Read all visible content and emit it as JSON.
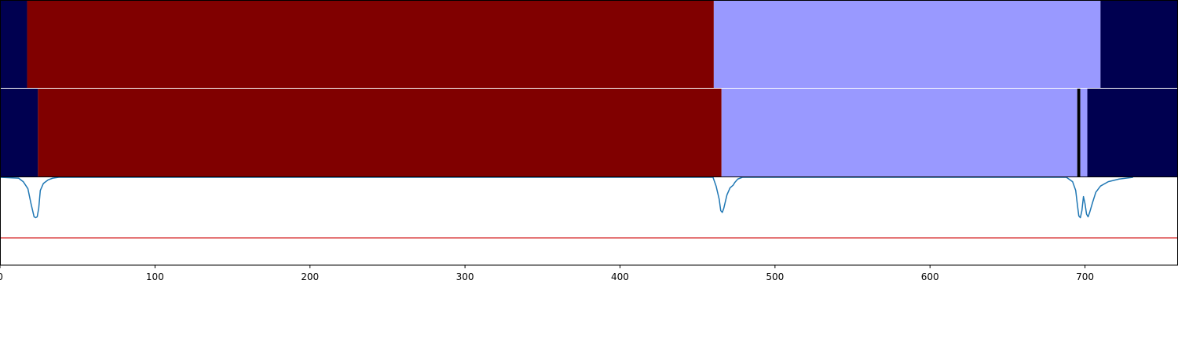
{
  "chart_data": {
    "type": "heatmap",
    "title": "",
    "xlabel": "",
    "ylabel": "",
    "xlim": [
      0,
      760
    ],
    "x_ticks": [
      0,
      100,
      200,
      300,
      400,
      500,
      600,
      700
    ],
    "x_tick_labels": [
      "0",
      "100",
      "200",
      "300",
      "400",
      "500",
      "600",
      "700"
    ],
    "grid": false,
    "colors": {
      "dark_navy": "#000050",
      "dark_red": "#800000",
      "light_purple": "#9999ff",
      "black": "#000000",
      "curve": "#1f77b4",
      "threshold": "#d62728"
    },
    "segment_rows": [
      {
        "name": "",
        "segments": [
          {
            "start": 0,
            "end": 17.5,
            "color": "dark_navy"
          },
          {
            "start": 17.5,
            "end": 460.5,
            "color": "dark_red"
          },
          {
            "start": 460.5,
            "end": 710,
            "color": "light_purple"
          },
          {
            "start": 710,
            "end": 760,
            "color": "dark_navy"
          }
        ]
      },
      {
        "name": "",
        "segments": [
          {
            "start": 0,
            "end": 24.5,
            "color": "dark_navy"
          },
          {
            "start": 24.5,
            "end": 465.5,
            "color": "dark_red"
          },
          {
            "start": 465.5,
            "end": 695,
            "color": "light_purple"
          },
          {
            "start": 695,
            "end": 697,
            "color": "black"
          },
          {
            "start": 697,
            "end": 701.5,
            "color": "light_purple"
          },
          {
            "start": 701.5,
            "end": 760,
            "color": "dark_navy"
          }
        ]
      }
    ],
    "line_panel": {
      "ylim": [
        -1.0,
        0.0
      ],
      "threshold": -0.69,
      "series": [
        {
          "name": "",
          "x": [
            0,
            12,
            15,
            18,
            20,
            22,
            23,
            24,
            25,
            26,
            28,
            31,
            34,
            38,
            42,
            460,
            462,
            464,
            465,
            466,
            467,
            469,
            471,
            473,
            474,
            476,
            479,
            483,
            688,
            692,
            694,
            695,
            696,
            697,
            698,
            699,
            700,
            701,
            702,
            703,
            705,
            707,
            710,
            715,
            722,
            731
          ],
          "y": [
            0.0,
            -0.01,
            -0.05,
            -0.13,
            -0.3,
            -0.45,
            -0.46,
            -0.45,
            -0.35,
            -0.15,
            -0.07,
            -0.03,
            -0.01,
            0.0,
            0.0,
            0.0,
            -0.1,
            -0.25,
            -0.38,
            -0.4,
            -0.35,
            -0.2,
            -0.12,
            -0.09,
            -0.06,
            -0.02,
            0.0,
            0.0,
            0.0,
            -0.05,
            -0.15,
            -0.3,
            -0.44,
            -0.46,
            -0.38,
            -0.22,
            -0.3,
            -0.42,
            -0.45,
            -0.4,
            -0.28,
            -0.17,
            -0.1,
            -0.05,
            -0.02,
            0.0
          ]
        }
      ]
    }
  }
}
